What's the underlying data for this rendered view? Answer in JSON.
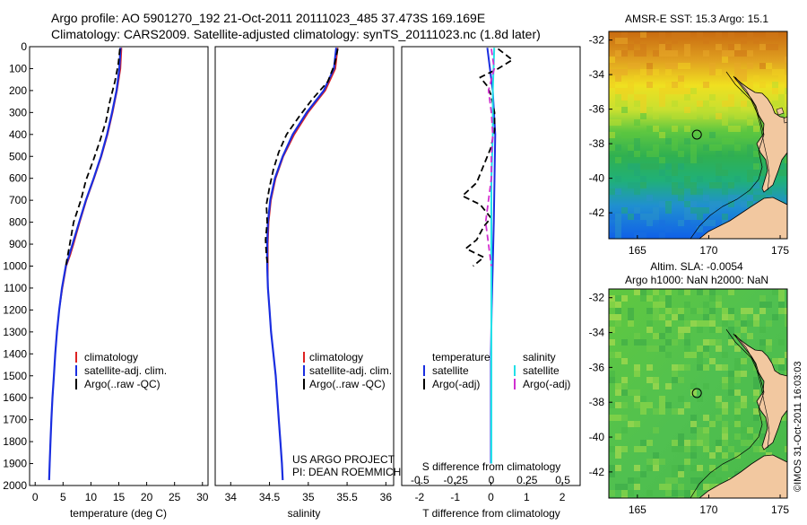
{
  "titles": {
    "line1": "Argo profile: AO 5901270_192 21-Oct-2011 20111023_485 37.473S 169.169E",
    "line2": "Climatology: CARS2009. Satellite-adjusted climatology: synTS_20111023.nc (1.8d later)"
  },
  "colors": {
    "climatology": "#dd2222",
    "satellite": "#1a2ee0",
    "argo": "#000000",
    "sal_satellite": "#22e0e8",
    "sal_argo": "#d030d0",
    "land": "#f2c8a0"
  },
  "chart_data": [
    {
      "type": "line",
      "title": "",
      "xlabel": "temperature (deg C)",
      "ylabel": "",
      "xlim": [
        -1,
        31
      ],
      "ylim": [
        2000,
        0
      ],
      "xticks": [
        0,
        5,
        10,
        15,
        20,
        25,
        30
      ],
      "yticks": [
        0,
        100,
        200,
        300,
        400,
        500,
        600,
        700,
        800,
        900,
        1000,
        1100,
        1200,
        1300,
        1400,
        1500,
        1600,
        1700,
        1800,
        1900,
        2000
      ],
      "legend": [
        "climatology",
        "satellite-adj. clim.",
        "Argo(..raw -QC)"
      ],
      "series": [
        {
          "name": "climatology",
          "depth": [
            5,
            100,
            200,
            300,
            400,
            500,
            600,
            700,
            800,
            900,
            950,
            1000,
            1100,
            1200,
            1300,
            1400,
            1500,
            1600,
            1700,
            1800,
            1900,
            1975
          ],
          "values": [
            15.5,
            15.3,
            14.7,
            13.9,
            13.0,
            11.9,
            10.6,
            9.2,
            8.0,
            6.9,
            6.3,
            5.6,
            4.9,
            4.3,
            3.9,
            3.6,
            3.35,
            3.1,
            2.9,
            2.75,
            2.6,
            2.5
          ]
        },
        {
          "name": "satellite-adj. clim.",
          "depth": [
            5,
            100,
            200,
            300,
            400,
            500,
            600,
            700,
            800,
            900,
            950,
            1000,
            1100,
            1200,
            1300,
            1400,
            1500,
            1600,
            1700,
            1800,
            1900,
            1975
          ],
          "values": [
            15.3,
            15.1,
            14.6,
            13.8,
            12.9,
            11.8,
            10.5,
            9.1,
            7.9,
            6.7,
            6.1,
            5.5,
            4.8,
            4.3,
            3.9,
            3.6,
            3.35,
            3.1,
            2.9,
            2.75,
            2.6,
            2.5
          ]
        },
        {
          "name": "Argo(..raw -QC)",
          "depth": [
            10,
            80,
            160,
            250,
            340,
            430,
            520,
            610,
            700,
            800,
            900,
            1000
          ],
          "values": [
            15.2,
            14.9,
            14.3,
            13.4,
            12.7,
            11.6,
            10.4,
            9.1,
            8.2,
            6.9,
            6.2,
            5.5
          ]
        }
      ]
    },
    {
      "type": "line",
      "title": "",
      "xlabel": "salinity",
      "ylabel": "",
      "xlim": [
        33.8,
        36.1
      ],
      "ylim": [
        2000,
        0
      ],
      "xticks": [
        34,
        34.5,
        35,
        35.5,
        36
      ],
      "legend": [
        "climatology",
        "satellite-adj. clim.",
        "Argo(..raw -QC)"
      ],
      "annotations": [
        "US ARGO PROJECT",
        "PI: DEAN ROEMMICH"
      ],
      "series": [
        {
          "name": "climatology",
          "depth": [
            5,
            100,
            200,
            300,
            400,
            500,
            600,
            700,
            800,
            900,
            1000,
            1100,
            1200,
            1300,
            1400,
            1500,
            1600,
            1700,
            1800,
            1900,
            1975
          ],
          "values": [
            35.38,
            35.35,
            35.22,
            35.0,
            34.82,
            34.68,
            34.58,
            34.52,
            34.49,
            34.48,
            34.48,
            34.48,
            34.5,
            34.52,
            34.55,
            34.58,
            34.6,
            34.62,
            34.64,
            34.66,
            34.67
          ]
        },
        {
          "name": "satellite-adj. clim.",
          "depth": [
            5,
            100,
            200,
            300,
            400,
            500,
            600,
            700,
            800,
            900,
            1000,
            1100,
            1200,
            1300,
            1400,
            1500,
            1600,
            1700,
            1800,
            1900,
            1975
          ],
          "values": [
            35.36,
            35.33,
            35.2,
            34.98,
            34.8,
            34.67,
            34.57,
            34.51,
            34.48,
            34.47,
            34.47,
            34.48,
            34.5,
            34.52,
            34.55,
            34.58,
            34.6,
            34.62,
            34.64,
            34.66,
            34.67
          ]
        },
        {
          "name": "Argo(..raw -QC)",
          "depth": [
            10,
            80,
            160,
            240,
            320,
            400,
            480,
            560,
            640,
            720,
            800,
            880,
            950,
            1000
          ],
          "values": [
            35.38,
            35.34,
            35.25,
            35.05,
            34.88,
            34.72,
            34.62,
            34.55,
            34.5,
            34.46,
            34.47,
            34.45,
            34.46,
            34.48
          ]
        }
      ]
    },
    {
      "type": "line",
      "title": "",
      "xlabel": "T difference from climatology",
      "xlabel_top": "S difference from climatology",
      "ylabel": "",
      "xlim": [
        -2.5,
        2.5
      ],
      "ylim": [
        2000,
        0
      ],
      "xticks": [
        -2,
        -1,
        0,
        1,
        2
      ],
      "xticks_s": [
        -0.5,
        -0.25,
        0,
        0.25,
        0.5
      ],
      "xtick_labels_s": [
        "-0.5",
        "-0.25",
        "0",
        "0.25",
        "0.5"
      ],
      "legend_temperature": [
        "temperature",
        "satellite",
        "Argo(-adj)"
      ],
      "legend_salinity": [
        "salinity",
        "satellite",
        "Argo(-adj)"
      ],
      "series": [
        {
          "name": "temperature satellite",
          "depth": [
            5,
            200,
            400,
            600,
            800,
            1000,
            1200,
            1400,
            1600,
            1800,
            1900
          ],
          "values": [
            -0.1,
            0.05,
            0.12,
            0.1,
            0.08,
            0.05,
            0.02,
            0.0,
            0.0,
            0.0,
            0.0
          ]
        },
        {
          "name": "temperature Argo(-adj)",
          "depth": [
            10,
            60,
            100,
            140,
            180,
            220,
            300,
            380,
            460,
            540,
            620,
            680,
            720,
            780,
            820,
            880,
            920,
            960,
            1000
          ],
          "values": [
            0.2,
            0.6,
            0.2,
            -0.3,
            -0.1,
            0.0,
            0.1,
            0.1,
            0.0,
            -0.2,
            -0.4,
            -0.8,
            -0.3,
            0.0,
            -0.2,
            -0.4,
            -0.7,
            -0.2,
            -0.5
          ]
        },
        {
          "name": "salinity satellite",
          "depth": [
            5,
            200,
            400,
            600,
            800,
            1000,
            1200,
            1400,
            1600,
            1800,
            1900
          ],
          "values": [
            0.02,
            0.01,
            0.01,
            0.0,
            0.0,
            0.0,
            0.0,
            0.0,
            0.0,
            0.0,
            0.0
          ]
        },
        {
          "name": "salinity Argo(-adj)",
          "depth": [
            10,
            100,
            200,
            300,
            400,
            500,
            600,
            700,
            800,
            900,
            1000
          ],
          "values": [
            0.0,
            0.02,
            -0.02,
            0.0,
            0.01,
            0.0,
            0.0,
            -0.02,
            -0.04,
            -0.02,
            0.0
          ]
        }
      ]
    },
    {
      "type": "heatmap",
      "title": "AMSR-E SST: 15.3 Argo: 15.1",
      "xlim": [
        163,
        175.5
      ],
      "ylim": [
        -43.5,
        -31.5
      ],
      "xticks": [
        165,
        170,
        175
      ],
      "yticks": [
        -32,
        -34,
        -36,
        -38,
        -40,
        -42
      ],
      "marker": {
        "lon": 169.169,
        "lat": -37.473
      }
    },
    {
      "type": "heatmap",
      "title": "Altim. SLA: -0.0054",
      "subtitle": "Argo h1000: NaN h2000: NaN",
      "xlim": [
        163,
        175.5
      ],
      "ylim": [
        -43.5,
        -31.5
      ],
      "xticks": [
        165,
        170,
        175
      ],
      "yticks": [
        -32,
        -34,
        -36,
        -38,
        -40,
        -42
      ],
      "marker": {
        "lon": 169.169,
        "lat": -37.473
      }
    }
  ],
  "credit": "©IMOS 31-Oct-2011 16:03:03"
}
